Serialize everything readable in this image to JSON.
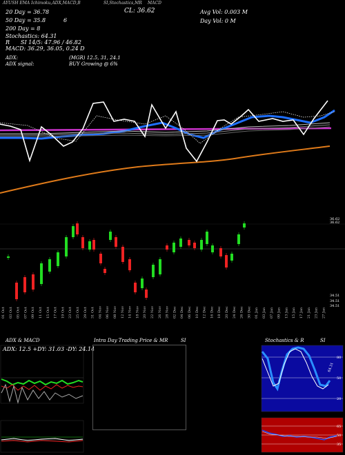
{
  "header": {
    "ticker_line": "AYUSH EMA Ichimoku,ADX,MACD,B",
    "stochastic_header": "SI,Stochastics,MR",
    "company_short": "",
    "macd_label": "MACD",
    "close_label": "CL: 36.62",
    "ema20": "20 Day = 36.78",
    "ema50": "50 Day = 35.8",
    "ema200": "200 Day = 8",
    "ema_extra": "6",
    "stochastics": "Stochastics: 64.31",
    "r_line": "R",
    "si_line": "SI 14/5: 47.96 / 46.82",
    "macd_line": "MACD: 36.29, 36.05, 0.24  D",
    "avg_vol": "Avg Vol: 0.003  M",
    "day_vol": "Day Vol: 0  M",
    "adx_line": "ADX:",
    "adx_signal": "ADX  signal:",
    "mgr_line": "(MGR) 12.5,  31,  24.1",
    "buy_line": "BUY Growing @ 6%"
  },
  "price_axis": {
    "top_tag": "36.62",
    "top_tag2": "36.62",
    "low_tag1": "34.51",
    "low_tag2": "34.51",
    "low_tag3": "34.51"
  },
  "x_dates": [
    "01 Oct",
    "03 Oct",
    "05 Oct",
    "07 Oct",
    "09 Oct",
    "11 Oct",
    "15 Oct",
    "17 Oct",
    "19 Oct",
    "23 Oct",
    "25 Oct",
    "29 Oct",
    "31 Oct",
    "04 Nov",
    "06 Nov",
    "08 Nov",
    "12 Nov",
    "14 Nov",
    "18 Nov",
    "20 Nov",
    "22 Nov",
    "26 Nov",
    "28 Nov",
    "02 Dec",
    "04 Dec",
    "06 Dec",
    "10 Dec",
    "12 Dec",
    "16 Dec",
    "18 Dec",
    "20 Dec",
    "24 Dec",
    "26 Dec",
    "30 Dec",
    "01 Jan",
    "03 Jan",
    "07 Jan",
    "09 Jan",
    "13 Jan",
    "15 Jan",
    "17 Jan",
    "21 Jan",
    "23 Jan",
    "27 Jan"
  ],
  "panels": {
    "adx_title": "ADX  & MACD",
    "adx_readout": "ADX: 12.5  +DY: 31.03  -DY: 24.14",
    "intraday_title": "Intra Day Trading Price  & MR",
    "intraday_si": "SI",
    "stoch_title": "Stochastics & R",
    "stoch_si": "SI",
    "stoch_levels": [
      "80",
      "50",
      "20"
    ],
    "rsi_levels": [
      "65",
      "50",
      "35"
    ],
    "stoch_value": "64.31"
  },
  "colors": {
    "ema20": "#1e6fff",
    "ema50": "#cc33cc",
    "ema200": "#e07b1a",
    "bull": "#22dd22",
    "bear": "#ee2222",
    "stoch_fill": "#0a0aa0",
    "rsi_fill": "#b00000"
  }
}
